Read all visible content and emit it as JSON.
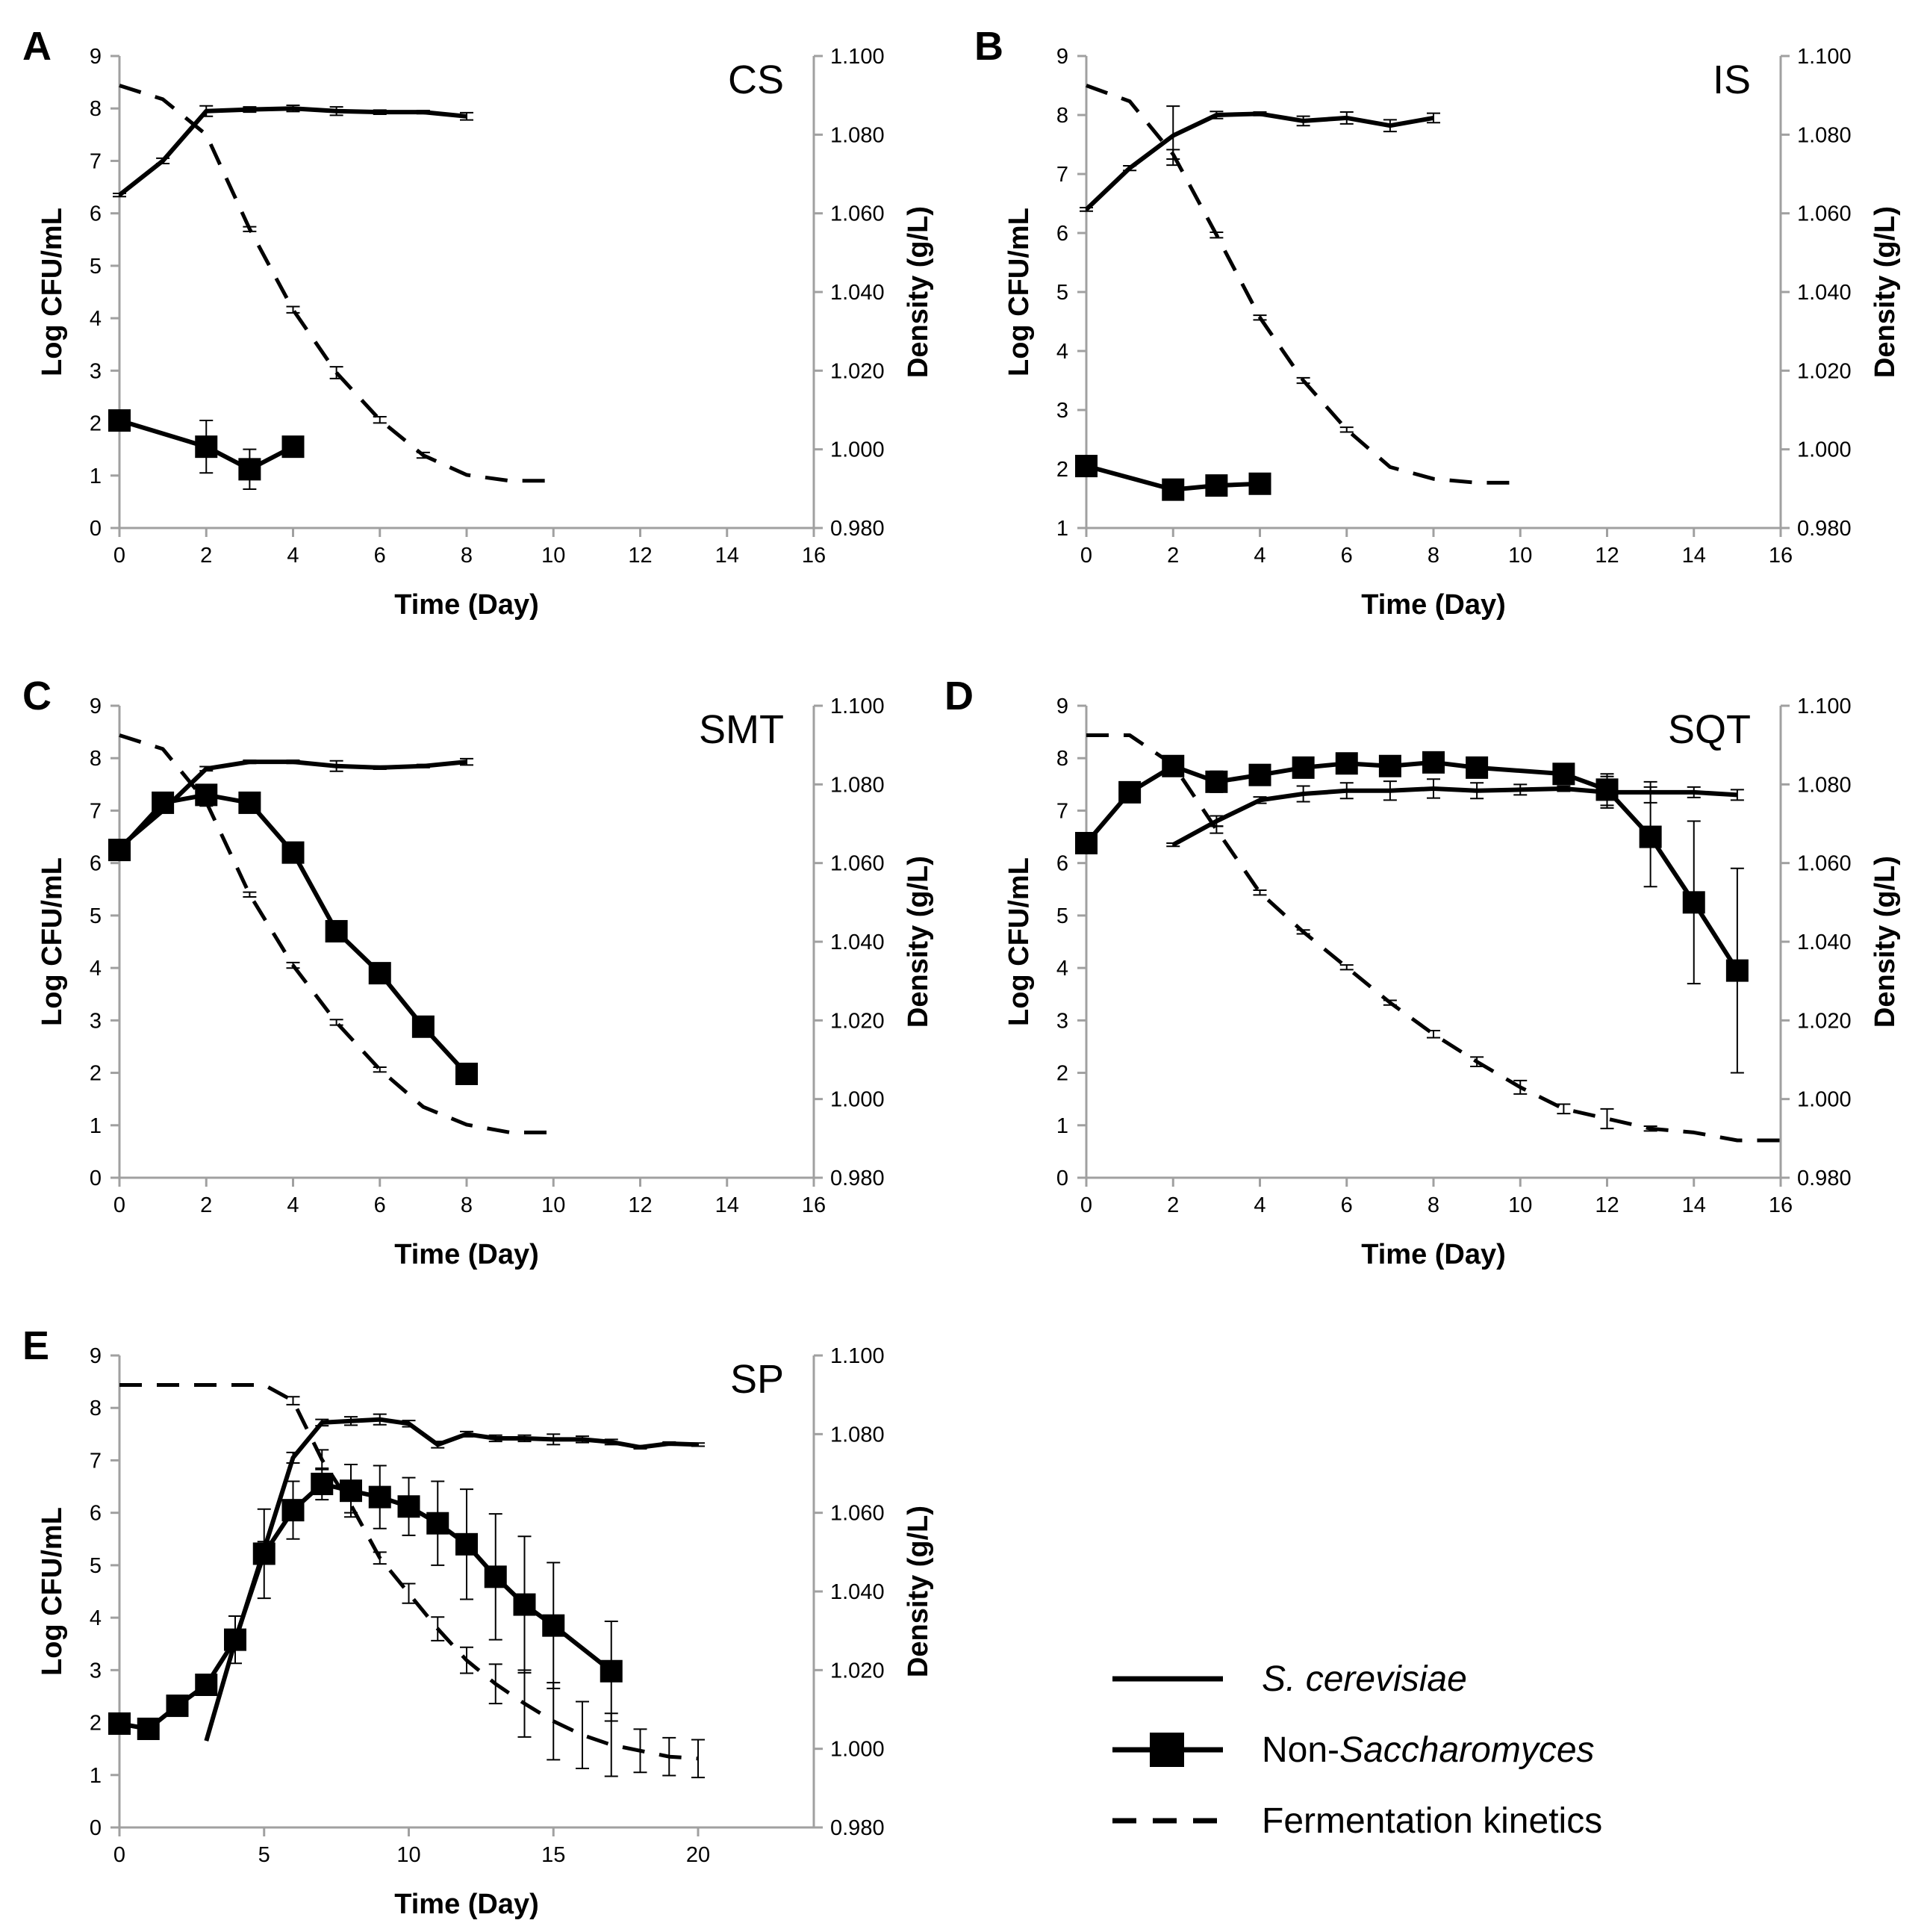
{
  "legend": {
    "s_cerevisiae_label": "S. cerevisiae",
    "non_sacch_prefix": "Non-",
    "non_sacch_italic": "Saccharomyces",
    "kinetics_label": "Fermentation kinetics"
  },
  "colors": {
    "line": "#000000",
    "axis": "#a0a0a0"
  },
  "chart_data": [
    {
      "type": "line",
      "panel": "A",
      "code": "CS",
      "xlabel": "Time (Day)",
      "ylabel": "Log CFU/mL",
      "y2label": "Density (g/L)",
      "xlim": [
        0,
        16
      ],
      "xticks": [
        0,
        2,
        4,
        6,
        8,
        10,
        12,
        14,
        16
      ],
      "ylim": [
        0,
        9
      ],
      "yticks": [
        0,
        1,
        2,
        3,
        4,
        5,
        6,
        7,
        8,
        9
      ],
      "y2lim": [
        0.98,
        1.1
      ],
      "y2ticks": [
        "0.980",
        "1.000",
        "1.020",
        "1.040",
        "1.060",
        "1.080",
        "1.100"
      ],
      "series": [
        {
          "name": "S. cerevisiae",
          "x": [
            0,
            1,
            2,
            3,
            4,
            5,
            6,
            7,
            8
          ],
          "values": [
            6.35,
            7.0,
            7.95,
            7.98,
            8.0,
            7.95,
            7.93,
            7.93,
            7.85
          ],
          "err": [
            0.03,
            0.05,
            0.1,
            0.05,
            0.06,
            0.08,
            0.04,
            0.03,
            0.07
          ]
        },
        {
          "name": "Non-Saccharomyces",
          "x": [
            0,
            2,
            3,
            4
          ],
          "values": [
            2.05,
            1.55,
            1.12,
            1.55
          ],
          "err": [
            0,
            0.5,
            0.38,
            0
          ]
        },
        {
          "name": "Fermentation kinetics",
          "axis": "y2",
          "x": [
            0,
            1,
            2,
            3,
            4,
            5,
            6,
            7,
            8,
            9,
            10
          ],
          "values": [
            1.0925,
            1.089,
            1.08,
            1.056,
            1.0355,
            1.0195,
            1.0075,
            0.9985,
            0.9935,
            0.992,
            0.992
          ],
          "err": [
            0,
            0,
            0,
            0.0006,
            0.0008,
            0.0015,
            0.0008,
            0.0007,
            0,
            0,
            0
          ]
        }
      ]
    },
    {
      "type": "line",
      "panel": "B",
      "code": "IS",
      "xlabel": "Time (Day)",
      "ylabel": "Log CFU/mL",
      "y2label": "Density (g/L)",
      "xlim": [
        0,
        16
      ],
      "xticks": [
        0,
        2,
        4,
        6,
        8,
        10,
        12,
        14,
        16
      ],
      "ylim": [
        1,
        9
      ],
      "yticks": [
        1,
        2,
        3,
        4,
        5,
        6,
        7,
        8,
        9
      ],
      "y2lim": [
        0.98,
        1.1
      ],
      "y2ticks": [
        "0.980",
        "1.000",
        "1.020",
        "1.040",
        "1.060",
        "1.080",
        "1.100"
      ],
      "series": [
        {
          "name": "S. cerevisiae",
          "x": [
            0,
            1,
            2,
            3,
            4,
            5,
            6,
            7,
            8
          ],
          "values": [
            6.4,
            7.1,
            7.65,
            8.0,
            8.02,
            7.9,
            7.95,
            7.82,
            7.95
          ],
          "err": [
            0.03,
            0.04,
            0.5,
            0.06,
            0.03,
            0.08,
            0.1,
            0.1,
            0.08
          ]
        },
        {
          "name": "Non-Saccharomyces",
          "x": [
            0,
            2,
            3,
            4
          ],
          "values": [
            2.05,
            1.65,
            1.72,
            1.75
          ],
          "err": [
            0,
            0,
            0,
            0
          ]
        },
        {
          "name": "Fermentation kinetics",
          "axis": "y2",
          "x": [
            0,
            1,
            2,
            3,
            4,
            5,
            6,
            7,
            8,
            9,
            10
          ],
          "values": [
            1.0925,
            1.0885,
            1.075,
            1.0545,
            1.0335,
            1.0175,
            1.005,
            0.9955,
            0.9925,
            0.9915,
            0.9915
          ],
          "err": [
            0,
            0,
            0.0012,
            0.0007,
            0.0006,
            0.0007,
            0.0006,
            0,
            0,
            0,
            0
          ]
        }
      ]
    },
    {
      "type": "line",
      "panel": "C",
      "code": "SMT",
      "xlabel": "Time (Day)",
      "ylabel": "Log CFU/mL",
      "y2label": "Density (g/L)",
      "xlim": [
        0,
        16
      ],
      "xticks": [
        0,
        2,
        4,
        6,
        8,
        10,
        12,
        14,
        16
      ],
      "ylim": [
        0,
        9
      ],
      "yticks": [
        0,
        1,
        2,
        3,
        4,
        5,
        6,
        7,
        8,
        9
      ],
      "y2lim": [
        0.98,
        1.1
      ],
      "y2ticks": [
        "0.980",
        "1.000",
        "1.020",
        "1.040",
        "1.060",
        "1.080",
        "1.100"
      ],
      "series": [
        {
          "name": "S. cerevisiae",
          "x": [
            0,
            1,
            2,
            3,
            4,
            5,
            6,
            7,
            8
          ],
          "values": [
            6.3,
            7.0,
            7.8,
            7.93,
            7.93,
            7.85,
            7.82,
            7.85,
            7.93
          ],
          "err": [
            0.03,
            0.04,
            0.04,
            0.03,
            0.03,
            0.1,
            0.03,
            0.03,
            0.06
          ]
        },
        {
          "name": "Non-Saccharomyces",
          "x": [
            0,
            1,
            2,
            3,
            4,
            5,
            6,
            7,
            8
          ],
          "values": [
            6.25,
            7.15,
            7.3,
            7.15,
            6.2,
            4.7,
            3.9,
            2.88,
            1.98
          ],
          "err": [
            0,
            0.15,
            0.12,
            0,
            0,
            0,
            0,
            0,
            0
          ]
        },
        {
          "name": "Fermentation kinetics",
          "axis": "y2",
          "x": [
            0,
            1,
            2,
            3,
            4,
            5,
            6,
            7,
            8,
            9,
            10
          ],
          "values": [
            1.0925,
            1.089,
            1.0755,
            1.052,
            1.034,
            1.0195,
            1.0075,
            0.998,
            0.9935,
            0.9915,
            0.9915
          ],
          "err": [
            0,
            0,
            0.001,
            0.0006,
            0.0007,
            0.0007,
            0.0006,
            0,
            0,
            0,
            0
          ]
        }
      ]
    },
    {
      "type": "line",
      "panel": "D",
      "code": "SQT",
      "xlabel": "Time (Day)",
      "ylabel": "Log CFU/mL",
      "y2label": "Density (g/L)",
      "xlim": [
        0,
        16
      ],
      "xticks": [
        0,
        2,
        4,
        6,
        8,
        10,
        12,
        14,
        16
      ],
      "ylim": [
        0,
        9
      ],
      "yticks": [
        0,
        1,
        2,
        3,
        4,
        5,
        6,
        7,
        8,
        9
      ],
      "y2lim": [
        0.98,
        1.1
      ],
      "y2ticks": [
        "0.980",
        "1.000",
        "1.020",
        "1.040",
        "1.060",
        "1.080",
        "1.100"
      ],
      "series": [
        {
          "name": "S. cerevisiae",
          "x": [
            2,
            3,
            4,
            5,
            6,
            7,
            8,
            9,
            10,
            11,
            12,
            13,
            14,
            15
          ],
          "values": [
            6.35,
            6.8,
            7.2,
            7.32,
            7.38,
            7.38,
            7.42,
            7.38,
            7.4,
            7.42,
            7.35,
            7.35,
            7.35,
            7.3
          ],
          "err": [
            0.03,
            0.1,
            0.06,
            0.15,
            0.15,
            0.18,
            0.18,
            0.15,
            0.1,
            0.05,
            0.3,
            0.2,
            0.1,
            0.1
          ]
        },
        {
          "name": "Non-Saccharomyces",
          "x": [
            0,
            1,
            2,
            3,
            4,
            5,
            6,
            7,
            8,
            9,
            11,
            12,
            13,
            14,
            15
          ],
          "values": [
            6.38,
            7.35,
            7.85,
            7.55,
            7.68,
            7.82,
            7.9,
            7.85,
            7.92,
            7.82,
            7.7,
            7.4,
            6.5,
            5.25,
            3.95
          ],
          "err": [
            0,
            0,
            0,
            0.2,
            0,
            0,
            0,
            0,
            0,
            0,
            0,
            0.3,
            0.95,
            1.55,
            1.95
          ]
        },
        {
          "name": "Fermentation kinetics",
          "axis": "y2",
          "x": [
            0,
            1,
            2,
            3,
            4,
            5,
            6,
            7,
            8,
            9,
            10,
            11,
            12,
            13,
            14,
            15,
            16
          ],
          "values": [
            1.0925,
            1.0925,
            1.085,
            1.0685,
            1.0525,
            1.0425,
            1.0335,
            1.0245,
            1.0165,
            1.0095,
            1.003,
            0.9975,
            0.995,
            0.9925,
            0.9915,
            0.9895,
            0.9895
          ],
          "err": [
            0,
            0,
            0,
            0.0009,
            0.0006,
            0.0005,
            0.0006,
            0.0006,
            0.0009,
            0.0012,
            0.0017,
            0.0012,
            0.0025,
            0.0006,
            0,
            0,
            0
          ]
        }
      ]
    },
    {
      "type": "line",
      "panel": "E",
      "code": "SP",
      "xlabel": "Time (Day)",
      "ylabel": "Log CFU/mL",
      "y2label": "Density (g/L)",
      "xlim": [
        0,
        24
      ],
      "xticks": [
        0,
        5,
        10,
        15,
        20
      ],
      "ylim": [
        0,
        9
      ],
      "yticks": [
        0,
        1,
        2,
        3,
        4,
        5,
        6,
        7,
        8,
        9
      ],
      "y2lim": [
        0.98,
        1.1
      ],
      "y2ticks": [
        "0.980",
        "1.000",
        "1.020",
        "1.040",
        "1.060",
        "1.080",
        "1.100"
      ],
      "series": [
        {
          "name": "S. cerevisiae",
          "x": [
            3,
            4,
            5,
            6,
            7,
            8,
            9,
            10,
            11,
            12,
            13,
            14,
            15,
            16,
            17,
            18,
            19,
            20
          ],
          "values": [
            1.65,
            3.55,
            5.3,
            7.05,
            7.72,
            7.75,
            7.78,
            7.7,
            7.3,
            7.5,
            7.42,
            7.42,
            7.4,
            7.4,
            7.35,
            7.25,
            7.32,
            7.3
          ],
          "err": [
            0,
            0.1,
            0.15,
            0.1,
            0.06,
            0.08,
            0.1,
            0.06,
            0.06,
            0.05,
            0.06,
            0.06,
            0.1,
            0.06,
            0.05,
            0.03,
            0.03,
            0.03
          ]
        },
        {
          "name": "Non-Saccharomyces",
          "x": [
            0,
            1,
            2,
            3,
            4,
            5,
            6,
            7,
            8,
            9,
            10,
            11,
            12,
            13,
            14,
            15,
            17
          ],
          "values": [
            1.98,
            1.88,
            2.32,
            2.72,
            3.58,
            5.22,
            6.05,
            6.55,
            6.42,
            6.3,
            6.12,
            5.8,
            5.4,
            4.78,
            4.25,
            3.85,
            2.98
          ],
          "err": [
            0,
            0,
            0,
            0,
            0.45,
            0.85,
            0.55,
            0.3,
            0.5,
            0.6,
            0.55,
            0.8,
            1.05,
            1.2,
            1.3,
            1.2,
            0.95
          ]
        },
        {
          "name": "Fermentation kinetics",
          "axis": "y2",
          "x": [
            0,
            1,
            2,
            3,
            4,
            5,
            6,
            7,
            8,
            9,
            10,
            11,
            12,
            13,
            14,
            15,
            16,
            17,
            18,
            19,
            20
          ],
          "values": [
            1.0925,
            1.0925,
            1.0925,
            1.0925,
            1.0925,
            1.0925,
            1.0885,
            1.0735,
            1.062,
            1.0485,
            1.0395,
            1.0305,
            1.0225,
            1.0165,
            1.0115,
            1.007,
            1.0035,
            1.001,
            0.9995,
            0.998,
            0.9975
          ],
          "err": [
            0,
            0,
            0,
            0,
            0,
            0,
            0.001,
            0.0025,
            0.002,
            0.0015,
            0.0025,
            0.003,
            0.0033,
            0.005,
            0.0085,
            0.0098,
            0.0085,
            0.008,
            0.0055,
            0.0048,
            0.0048
          ]
        }
      ]
    }
  ]
}
